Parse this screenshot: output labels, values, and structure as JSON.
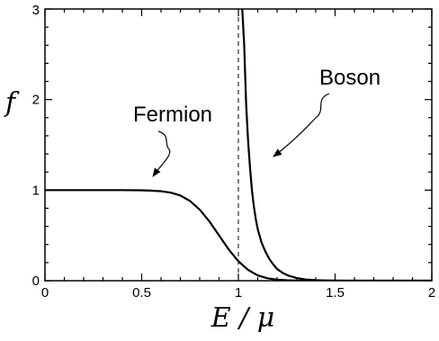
{
  "chart_data": {
    "type": "line",
    "title": "",
    "xlabel": "E / μ",
    "ylabel": "f",
    "xlim": [
      0,
      2
    ],
    "ylim": [
      0,
      3
    ],
    "x_ticks": [
      0,
      0.5,
      1,
      1.5,
      2
    ],
    "x_tick_labels": [
      "0",
      "0.5",
      "1",
      "1.5",
      "2"
    ],
    "y_ticks": [
      0,
      1,
      2,
      3
    ],
    "y_tick_labels": [
      "0",
      "1",
      "2",
      "3"
    ],
    "grid": false,
    "reference_lines": [
      {
        "axis": "x",
        "value": 1,
        "style": "dashed"
      }
    ],
    "series": [
      {
        "name": "Fermion",
        "x": [
          0,
          0.1,
          0.2,
          0.3,
          0.4,
          0.5,
          0.55,
          0.6,
          0.65,
          0.7,
          0.75,
          0.8,
          0.85,
          0.9,
          0.95,
          1.0,
          1.05,
          1.1,
          1.15,
          1.2,
          1.25,
          1.3,
          1.35,
          1.4,
          1.45,
          1.5,
          1.6,
          1.7,
          1.8,
          1.9,
          2.0
        ],
        "values": [
          1,
          1,
          1,
          1,
          1,
          0.998,
          0.995,
          0.988,
          0.973,
          0.941,
          0.88,
          0.785,
          0.655,
          0.5,
          0.345,
          0.215,
          0.12,
          0.059,
          0.027,
          0.012,
          0.005,
          0.002,
          0.001,
          0.0005,
          0.0002,
          0.0001,
          0,
          0,
          0,
          0,
          0
        ]
      },
      {
        "name": "Boson",
        "x": [
          1.01,
          1.02,
          1.03,
          1.04,
          1.05,
          1.06,
          1.07,
          1.08,
          1.09,
          1.1,
          1.12,
          1.14,
          1.16,
          1.18,
          1.2,
          1.23,
          1.26,
          1.3,
          1.35,
          1.4,
          1.45,
          1.5,
          1.6,
          1.7,
          1.8,
          1.9,
          2.0
        ],
        "values": [
          3.2,
          3.0,
          2.6,
          1.95,
          1.55,
          1.25,
          1.0,
          0.82,
          0.68,
          0.57,
          0.42,
          0.32,
          0.24,
          0.18,
          0.13,
          0.085,
          0.055,
          0.03,
          0.013,
          0.006,
          0.003,
          0.001,
          0,
          0,
          0,
          0,
          0
        ]
      }
    ],
    "annotations": [
      {
        "text": "Fermion",
        "points_to_series": "Fermion"
      },
      {
        "text": "Boson",
        "points_to_series": "Boson"
      }
    ]
  }
}
